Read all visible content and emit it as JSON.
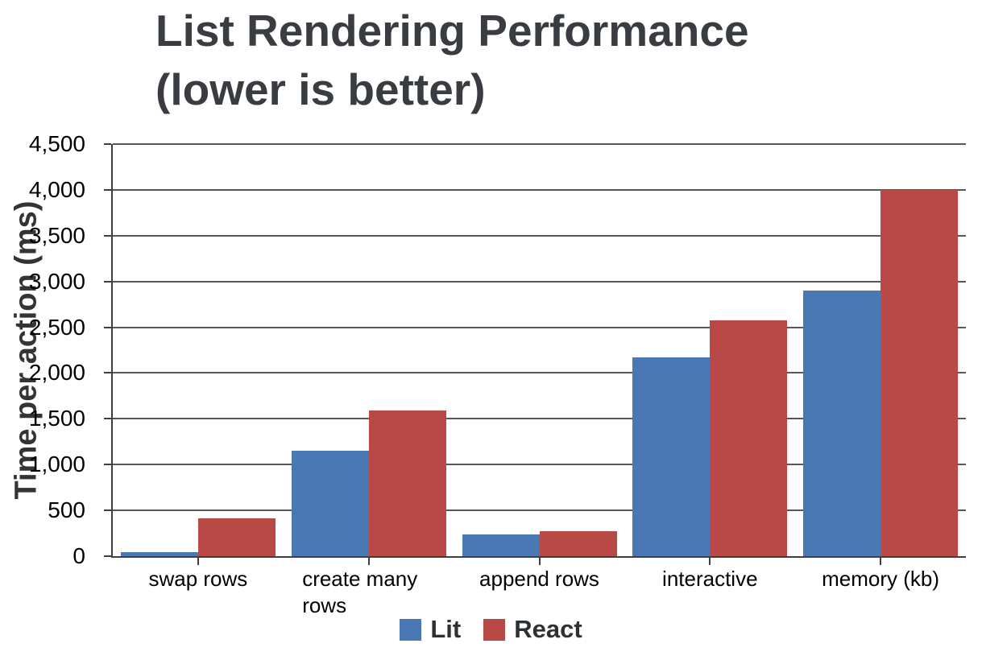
{
  "title": {
    "line1": "List Rendering Performance",
    "line2": "(lower is better)"
  },
  "chart_data": {
    "type": "bar",
    "title": "List Rendering Performance (lower is better)",
    "xlabel": "",
    "ylabel": "Time per action (ms)",
    "categories": [
      "swap rows",
      "create many rows",
      "append rows",
      "interactive",
      "memory (kb)"
    ],
    "series": [
      {
        "name": "Lit",
        "color": "#4a78b5",
        "values": [
          45,
          1150,
          240,
          2175,
          2900
        ]
      },
      {
        "name": "React",
        "color": "#b84946",
        "values": [
          410,
          1590,
          275,
          2575,
          4000
        ]
      }
    ],
    "ylim": [
      0,
      4500
    ],
    "ytick_step": 500,
    "ytick_labels": [
      "0",
      "500",
      "1,000",
      "1,500",
      "2,000",
      "2,500",
      "3,000",
      "3,500",
      "4,000",
      "4,500"
    ],
    "grid": true,
    "legend_position": "bottom"
  },
  "colors": {
    "lit_blue": "#4a78b5",
    "react_red": "#b84946",
    "gridline": "#575757",
    "axis": "#3f3f3f",
    "title_text": "#393c40"
  }
}
